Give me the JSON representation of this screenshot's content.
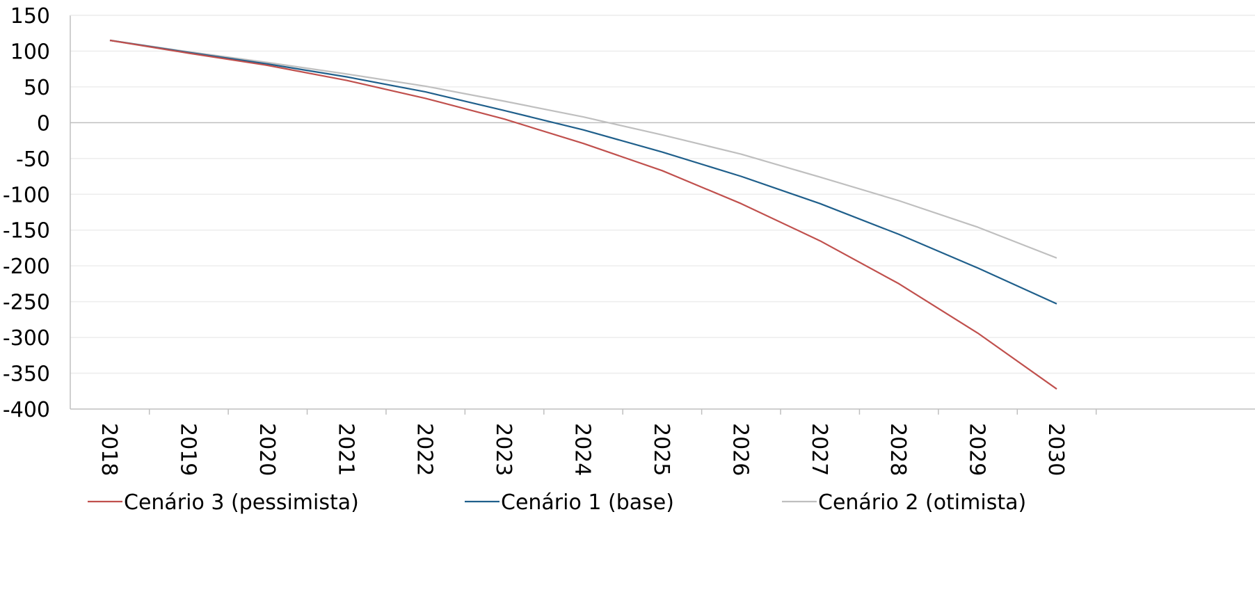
{
  "chart_data": {
    "type": "line",
    "title": "",
    "xlabel": "",
    "ylabel": "",
    "categories": [
      "2018",
      "2019",
      "2020",
      "2021",
      "2022",
      "2023",
      "2024",
      "2025",
      "2026",
      "2027",
      "2028",
      "2029",
      "2030"
    ],
    "ylim": [
      -400,
      150
    ],
    "yticks": [
      150,
      100,
      50,
      0,
      -50,
      -100,
      -150,
      -200,
      -250,
      -300,
      -350,
      -400
    ],
    "grid": true,
    "legend_position": "bottom",
    "series": [
      {
        "name": "Cenário 3 (pessimista)",
        "color": "#C0504D",
        "values": [
          115,
          97,
          80,
          59,
          34,
          5,
          -29,
          -67,
          -113,
          -165,
          -225,
          -294,
          -372
        ]
      },
      {
        "name": "Cenário 1 (base)",
        "color": "#1F5F8B",
        "values": [
          115,
          98,
          82,
          64,
          43,
          17,
          -10,
          -41,
          -75,
          -113,
          -156,
          -203,
          -253
        ]
      },
      {
        "name": "Cenário 2 (otimista)",
        "color": "#BFBFBF",
        "values": [
          115,
          99,
          84,
          68,
          51,
          30,
          8,
          -17,
          -44,
          -76,
          -109,
          -146,
          -189
        ]
      }
    ]
  }
}
